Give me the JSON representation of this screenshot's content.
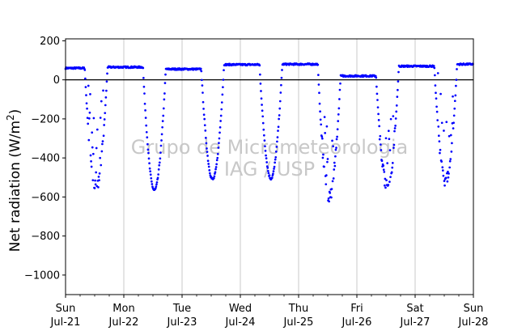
{
  "chart_data": {
    "type": "scatter",
    "title": "",
    "ylabel_main": "Net radiation (W/m",
    "ylabel_sup": "2",
    "ylabel_close": ")",
    "xlabel": "",
    "ylim": [
      -1100,
      210
    ],
    "xlim": [
      0,
      7
    ],
    "yticks": [
      200,
      0,
      -200,
      -400,
      -600,
      -800,
      -1000
    ],
    "ytick_labels": [
      "200",
      "0",
      "−200",
      "−400",
      "−600",
      "−800",
      "−1000"
    ],
    "xticks": [
      {
        "pos": 0,
        "day": "Sun",
        "date": "Jul-21"
      },
      {
        "pos": 1,
        "day": "Mon",
        "date": "Jul-22"
      },
      {
        "pos": 2,
        "day": "Tue",
        "date": "Jul-23"
      },
      {
        "pos": 3,
        "day": "Wed",
        "date": "Jul-24"
      },
      {
        "pos": 4,
        "day": "Thu",
        "date": "Jul-25"
      },
      {
        "pos": 5,
        "day": "Fri",
        "date": "Jul-26"
      },
      {
        "pos": 6,
        "day": "Sat",
        "date": "Jul-27"
      },
      {
        "pos": 7,
        "day": "Sun",
        "date": "Jul-28"
      }
    ],
    "vertical_grid": true,
    "zero_line": true,
    "watermark": [
      "Grupo de Micrometeorologia",
      "IAG / USP"
    ],
    "series": [
      {
        "color": "#0000ff",
        "days": [
          {
            "day": 0,
            "night_before": 60,
            "min": -550,
            "night_after": 65,
            "noisy": true
          },
          {
            "day": 1,
            "night_before": 65,
            "min": -565,
            "night_after": 55,
            "noisy": false
          },
          {
            "day": 2,
            "night_before": 55,
            "min": -510,
            "night_after": 78,
            "noisy": false
          },
          {
            "day": 3,
            "night_before": 78,
            "min": -505,
            "night_after": 80,
            "noisy": false
          },
          {
            "day": 4,
            "night_before": 80,
            "min": -600,
            "night_after": 20,
            "noisy": true
          },
          {
            "day": 5,
            "night_before": 20,
            "min": -545,
            "night_after": 70,
            "noisy": true
          },
          {
            "day": 6,
            "night_before": 70,
            "min": -520,
            "night_after": 80,
            "noisy": true
          }
        ],
        "midday_time": 0.5
      }
    ]
  }
}
